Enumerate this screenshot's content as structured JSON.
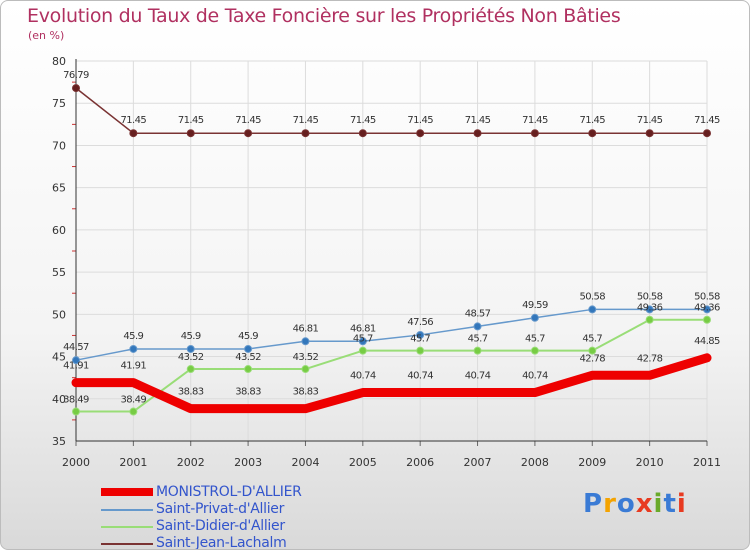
{
  "title": "Evolution du Taux de Taxe Foncière sur les Propriétés Non Bâties",
  "subtitle": "(en %)",
  "logo": {
    "text": "Proxiti",
    "colors": [
      "#3a7bd5",
      "#f4a300",
      "#3a7bd5",
      "#e83a20",
      "#6aaa2a",
      "#3a7bd5",
      "#e83a20"
    ]
  },
  "chart_data": {
    "type": "line",
    "title": "Evolution du Taux de Taxe Foncière sur les Propriétés Non Bâties",
    "ylabel": "(en %)",
    "xlabel": "",
    "x": [
      "2000",
      "2001",
      "2002",
      "2003",
      "2004",
      "2005",
      "2006",
      "2007",
      "2008",
      "2009",
      "2010",
      "2011"
    ],
    "ylim": [
      35,
      80
    ],
    "yticks": [
      "35",
      "40",
      "45",
      "50",
      "55",
      "60",
      "65",
      "70",
      "75",
      "80"
    ],
    "grid": true,
    "legend_position": "bottom-left",
    "series": [
      {
        "name": "MONISTROL-D'ALLIER",
        "color": "#ee0000",
        "values": [
          41.91,
          41.91,
          38.83,
          38.83,
          38.83,
          40.74,
          40.74,
          40.74,
          40.74,
          42.78,
          42.78,
          44.85
        ],
        "labels": [
          "41.91",
          "41.91",
          "38.83",
          "38.83",
          "38.83",
          "40.74",
          "40.74",
          "40.74",
          "40.74",
          "42.78",
          "42.78",
          "44.85"
        ]
      },
      {
        "name": "Saint-Privat-d'Allier",
        "color": "#6699cc",
        "values": [
          44.57,
          45.9,
          45.9,
          45.9,
          46.81,
          46.81,
          47.56,
          48.57,
          49.59,
          50.58,
          50.58,
          50.58
        ],
        "labels": [
          "44.57",
          "45.9",
          "45.9",
          "45.9",
          "46.81",
          "46.81",
          "47.56",
          "48.57",
          "49.59",
          "50.58",
          "50.58",
          "50.58"
        ]
      },
      {
        "name": "Saint-Didier-d'Allier",
        "color": "#99dd77",
        "values": [
          38.49,
          38.49,
          43.52,
          43.52,
          43.52,
          45.7,
          45.7,
          45.7,
          45.7,
          45.7,
          49.36,
          49.36
        ],
        "labels": [
          "38.49",
          "38.49",
          "43.52",
          "43.52",
          "43.52",
          "45.7",
          "45.7",
          "45.7",
          "45.7",
          "45.7",
          "49.36",
          "49.36"
        ]
      },
      {
        "name": "Saint-Jean-Lachalm",
        "color": "#7a3333",
        "values": [
          76.79,
          71.45,
          71.45,
          71.45,
          71.45,
          71.45,
          71.45,
          71.45,
          71.45,
          71.45,
          71.45,
          71.45
        ],
        "labels": [
          "76.79",
          "71.45",
          "71.45",
          "71.45",
          "71.45",
          "71.45",
          "71.45",
          "71.45",
          "71.45",
          "71.45",
          "71.45",
          "71.45"
        ]
      }
    ]
  }
}
